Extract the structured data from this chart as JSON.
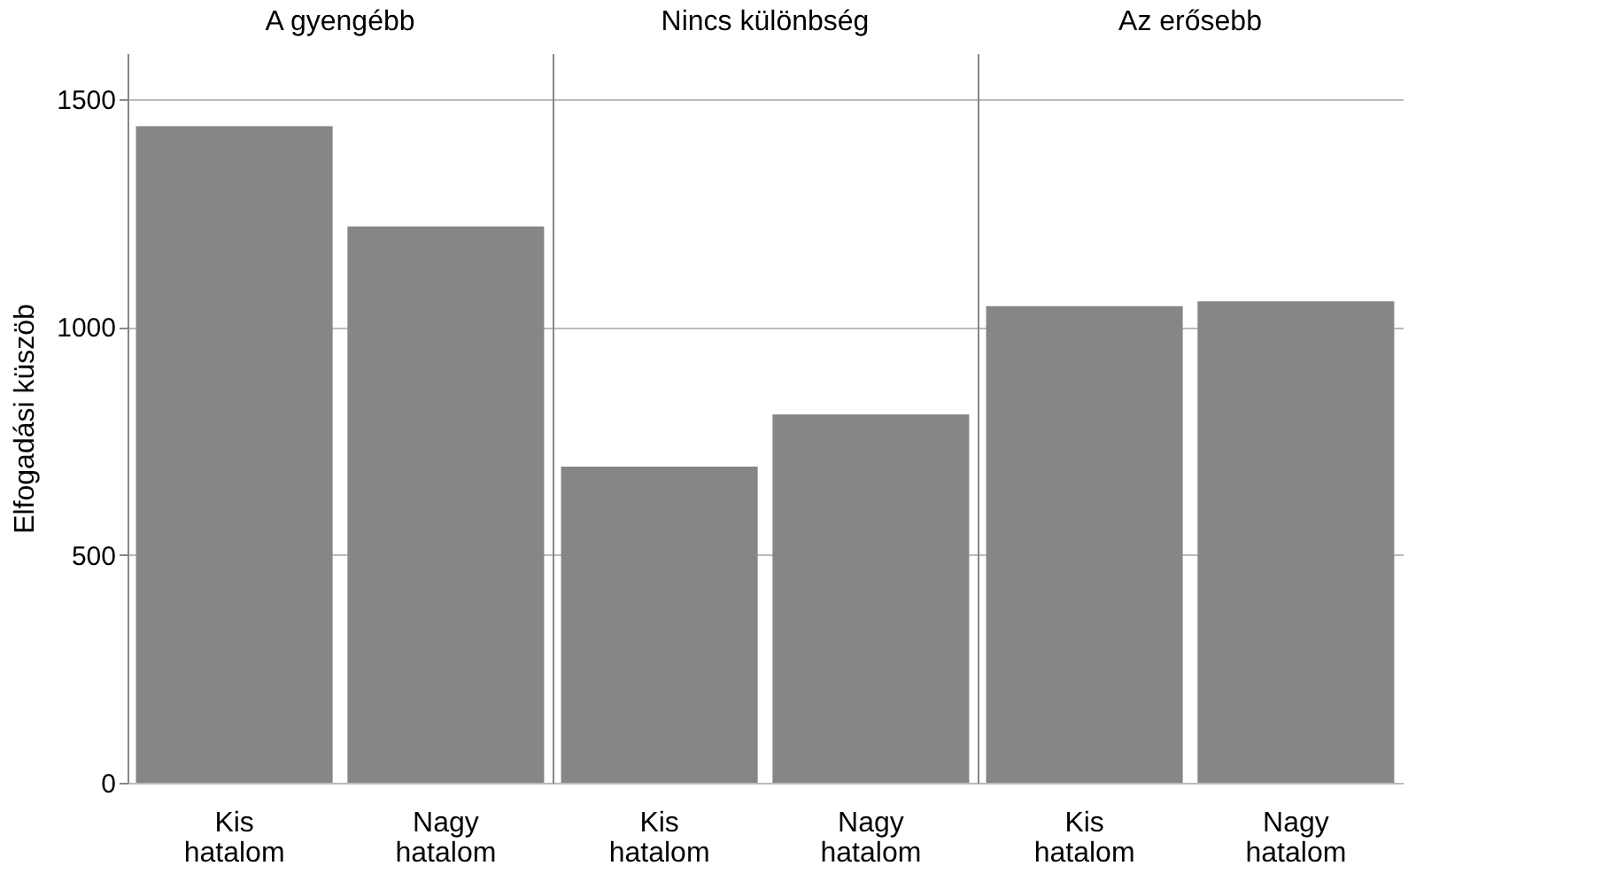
{
  "chart_data": [
    {
      "type": "bar",
      "title": "A gyengébb",
      "ylabel": "Elfogadási küszöb",
      "categories": [
        "Kis hatalom",
        "Nagy hatalom"
      ],
      "values": [
        1440,
        1220
      ],
      "color": "#868686",
      "ylim": [
        0,
        1600
      ],
      "yticks": [
        0,
        500,
        1000,
        1500
      ],
      "grid": "y"
    },
    {
      "type": "bar",
      "title": "Nincs különbség",
      "categories": [
        "Kis hatalom",
        "Nagy hatalom"
      ],
      "values": [
        693,
        808
      ],
      "color": "#868686",
      "ylim": [
        0,
        1600
      ],
      "yticks": [
        0,
        500,
        1000,
        1500
      ],
      "grid": "y",
      "tick_labels": "x"
    },
    {
      "type": "bar",
      "title": "Az erősebb",
      "categories": [
        "Kis hatalom",
        "Nagy hatalom"
      ],
      "values": [
        1045,
        1056
      ],
      "color": "#868686",
      "ylim": [
        0,
        1600
      ],
      "yticks": [
        0,
        500,
        1000,
        1500
      ],
      "grid": "y",
      "tick_labels": "x"
    }
  ]
}
